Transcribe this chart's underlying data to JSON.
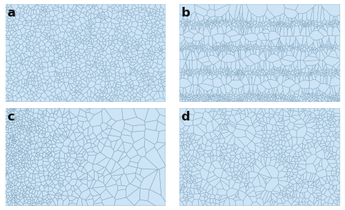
{
  "fill_color": "#cce4f5",
  "edge_color": "#7a9db8",
  "outer_bg": "#ffffff",
  "label_fontsize": 13,
  "label_fontweight": "bold",
  "label_color": "#111111",
  "figsize": [
    5.0,
    3.05
  ],
  "dpi": 100,
  "labels": [
    "a",
    "b",
    "c",
    "d"
  ],
  "panel_positions": {
    "a": [
      0.015,
      0.515,
      0.465,
      0.465
    ],
    "b": [
      0.52,
      0.515,
      0.465,
      0.465
    ],
    "c": [
      0.015,
      0.02,
      0.465,
      0.465
    ],
    "d": [
      0.52,
      0.02,
      0.465,
      0.465
    ]
  }
}
